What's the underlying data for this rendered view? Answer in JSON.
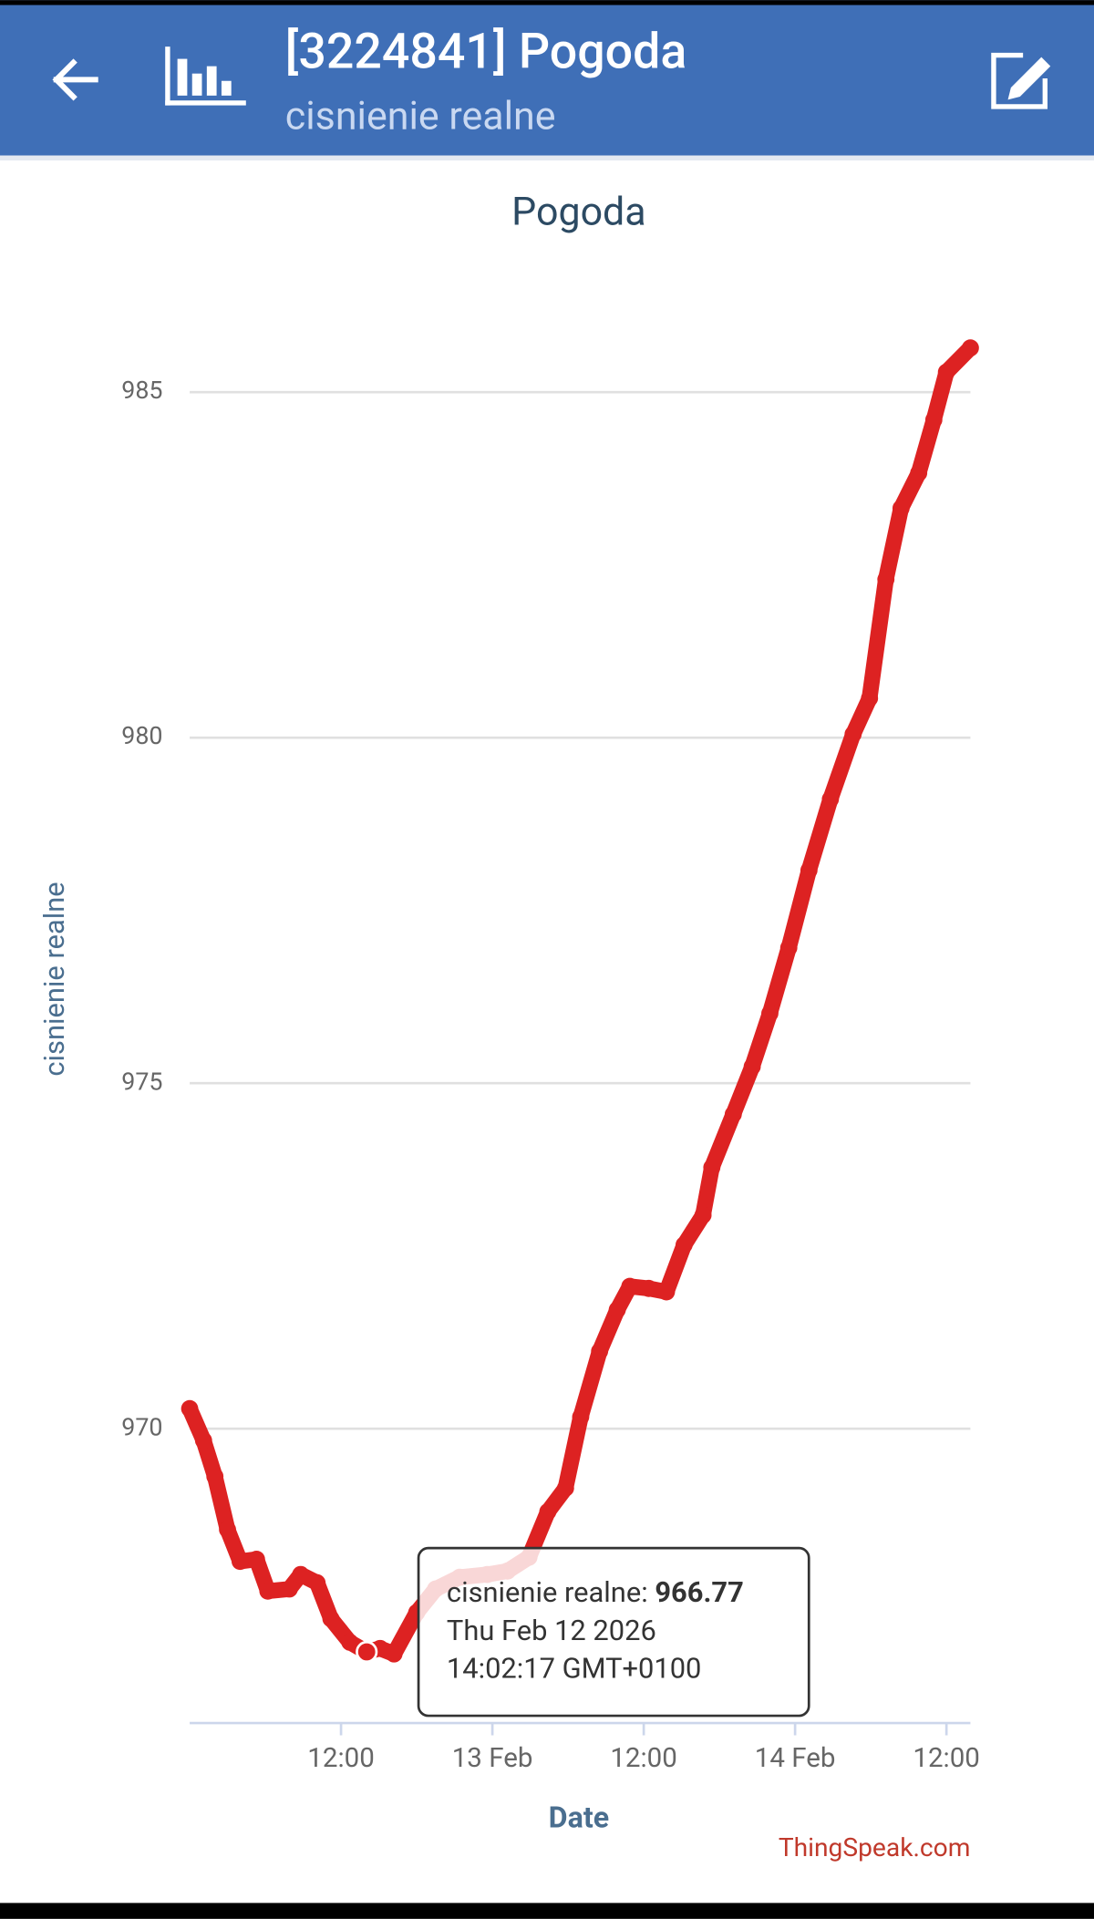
{
  "header": {
    "title": "[3224841] Pogoda",
    "subtitle": "cisnienie realne"
  },
  "chart_data": {
    "type": "line",
    "title": "Pogoda",
    "x_label": "Date",
    "credit": "ThingSpeak.com",
    "x": [
      "2026-02-12T00:00",
      "2026-02-12T01:06",
      "2026-02-12T02:00",
      "2026-02-12T03:00",
      "2026-02-12T04:00",
      "2026-02-12T05:18",
      "2026-02-12T06:12",
      "2026-02-12T07:54",
      "2026-02-12T08:48",
      "2026-02-12T10:06",
      "2026-02-12T11:12",
      "2026-02-12T12:42",
      "2026-02-12T14:02",
      "2026-02-12T15:06",
      "2026-02-12T16:12",
      "2026-02-12T18:00",
      "2026-02-12T19:30",
      "2026-02-12T21:24",
      "2026-02-12T23:36",
      "2026-02-13T01:12",
      "2026-02-13T02:54",
      "2026-02-13T04:24",
      "2026-02-13T05:48",
      "2026-02-13T07:00",
      "2026-02-13T08:30",
      "2026-02-13T09:54",
      "2026-02-13T10:54",
      "2026-02-13T12:24",
      "2026-02-13T13:48",
      "2026-02-13T15:12",
      "2026-02-13T16:42",
      "2026-02-13T17:24",
      "2026-02-13T19:06",
      "2026-02-13T20:36",
      "2026-02-13T22:00",
      "2026-02-13T23:30",
      "2026-02-14T01:06",
      "2026-02-14T02:48",
      "2026-02-14T04:36",
      "2026-02-14T05:54",
      "2026-02-14T07:12",
      "2026-02-14T08:24",
      "2026-02-14T09:48",
      "2026-02-14T11:00",
      "2026-02-14T12:00",
      "2026-02-14T13:54"
    ],
    "series": [
      {
        "name": "cisnienie realne",
        "color": "#dd2222",
        "values": [
          970.29,
          969.83,
          969.31,
          968.54,
          968.08,
          968.11,
          967.65,
          967.68,
          967.89,
          967.77,
          967.25,
          966.91,
          966.77,
          966.82,
          966.74,
          967.34,
          967.68,
          967.85,
          967.89,
          967.94,
          968.14,
          968.8,
          969.14,
          970.17,
          971.12,
          971.72,
          972.06,
          972.03,
          971.98,
          972.66,
          973.09,
          973.78,
          974.55,
          975.24,
          976.01,
          976.96,
          978.08,
          979.11,
          980.05,
          980.57,
          982.29,
          983.32,
          983.83,
          984.6,
          985.29,
          985.64
        ]
      }
    ],
    "xlim": [
      "2026-02-12T00:00",
      "2026-02-14T13:54"
    ],
    "xticks": [
      {
        "value": "2026-02-12T12:00",
        "label": "12:00"
      },
      {
        "value": "2026-02-13T00:00",
        "label": "13 Feb"
      },
      {
        "value": "2026-02-13T12:00",
        "label": "12:00"
      },
      {
        "value": "2026-02-14T00:00",
        "label": "14 Feb"
      },
      {
        "value": "2026-02-14T12:00",
        "label": "12:00"
      }
    ],
    "ylim": [
      965.74,
      986.6
    ],
    "yticks": [
      970,
      975,
      980,
      985
    ],
    "grid": true,
    "tooltip": {
      "index": 12,
      "label": "cisnienie realne:",
      "value": 966.77,
      "date": "Thu Feb 12 2026",
      "time": "14:02:17 GMT+0100"
    }
  }
}
